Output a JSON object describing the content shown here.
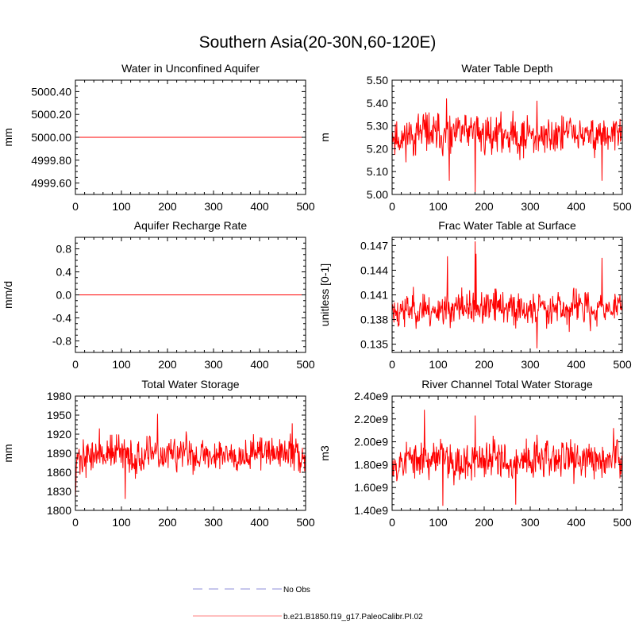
{
  "figure_title": "Southern Asia(20-30N,60-120E)",
  "colors": {
    "series": "#ff0000",
    "obs": "#b3b3e6",
    "axis": "#000000"
  },
  "legend": [
    {
      "label": "No Obs",
      "style": "dashed",
      "color": "#b3b3e6"
    },
    {
      "label": "b.e21.B1850.f19_g17.PaleoCalibr.PI.02",
      "style": "solid",
      "color": "#ff9999"
    }
  ],
  "chart_data": [
    {
      "type": "line",
      "title": "Water in Unconfined Aquifer",
      "ylabel": "mm",
      "xlim": [
        0,
        500
      ],
      "ylim": [
        4999.5,
        5000.5
      ],
      "xticks": [
        0,
        100,
        200,
        300,
        400,
        500
      ],
      "xtick_labels": [
        "0",
        "100",
        "200",
        "300",
        "400",
        "500"
      ],
      "yticks": [
        4999.6,
        4999.8,
        5000.0,
        5000.2,
        5000.4
      ],
      "ytick_labels": [
        "4999.60",
        "4999.80",
        "5000.00",
        "5000.20",
        "5000.40"
      ],
      "series": {
        "name": "b.e21.B1850.f19_g17.PaleoCalibr.PI.02",
        "n": 500,
        "constant": 5000.0
      }
    },
    {
      "type": "line",
      "title": "Water Table Depth",
      "ylabel": "m",
      "xlim": [
        0,
        500
      ],
      "ylim": [
        5.0,
        5.5
      ],
      "xticks": [
        0,
        100,
        200,
        300,
        400,
        500
      ],
      "xtick_labels": [
        "0",
        "100",
        "200",
        "300",
        "400",
        "500"
      ],
      "yticks": [
        5.0,
        5.1,
        5.2,
        5.3,
        5.4,
        5.5
      ],
      "ytick_labels": [
        "5.00",
        "5.10",
        "5.20",
        "5.30",
        "5.40",
        "5.50"
      ],
      "series": {
        "name": "b.e21.B1850.f19_g17.PaleoCalibr.PI.02",
        "n": 500,
        "mean": 5.26,
        "amp": 0.05,
        "min": 5.01,
        "max": 5.42,
        "seed": 11,
        "spikes": [
          [
            118,
            5.42
          ],
          [
            124,
            5.06
          ],
          [
            180,
            5.01
          ],
          [
            314,
            5.41
          ],
          [
            455,
            5.06
          ]
        ]
      }
    },
    {
      "type": "line",
      "title": "Aquifer Recharge Rate",
      "ylabel": "mm/d",
      "xlim": [
        0,
        500
      ],
      "ylim": [
        -1.0,
        1.0
      ],
      "xticks": [
        0,
        100,
        200,
        300,
        400,
        500
      ],
      "xtick_labels": [
        "0",
        "100",
        "200",
        "300",
        "400",
        "500"
      ],
      "yticks": [
        -0.8,
        -0.4,
        0.0,
        0.4,
        0.8
      ],
      "ytick_labels": [
        "-0.8",
        "-0.4",
        "0.0",
        "0.4",
        "0.8"
      ],
      "series": {
        "name": "b.e21.B1850.f19_g17.PaleoCalibr.PI.02",
        "n": 500,
        "constant": 0.0
      }
    },
    {
      "type": "line",
      "title": "Frac Water Table at Surface",
      "ylabel": "unitless [0-1]",
      "xlim": [
        0,
        500
      ],
      "ylim": [
        0.134,
        0.148
      ],
      "xticks": [
        0,
        100,
        200,
        300,
        400,
        500
      ],
      "xtick_labels": [
        "0",
        "100",
        "200",
        "300",
        "400",
        "500"
      ],
      "yticks": [
        0.135,
        0.138,
        0.141,
        0.144,
        0.147
      ],
      "ytick_labels": [
        "0.135",
        "0.138",
        "0.141",
        "0.144",
        "0.147"
      ],
      "series": {
        "name": "b.e21.B1850.f19_g17.PaleoCalibr.PI.02",
        "n": 500,
        "mean": 0.1393,
        "amp": 0.0012,
        "min": 0.1345,
        "max": 0.1475,
        "seed": 23,
        "spikes": [
          [
            120,
            0.1457
          ],
          [
            180,
            0.1475
          ],
          [
            182,
            0.146
          ],
          [
            314,
            0.1345
          ],
          [
            455,
            0.1455
          ]
        ]
      }
    },
    {
      "type": "line",
      "title": "Total Water Storage",
      "ylabel": "mm",
      "xlim": [
        0,
        500
      ],
      "ylim": [
        1800,
        1980
      ],
      "xticks": [
        0,
        100,
        200,
        300,
        400,
        500
      ],
      "xtick_labels": [
        "0",
        "100",
        "200",
        "300",
        "400",
        "500"
      ],
      "yticks": [
        1800,
        1830,
        1860,
        1890,
        1920,
        1950,
        1980
      ],
      "ytick_labels": [
        "1800",
        "1830",
        "1860",
        "1890",
        "1920",
        "1950",
        "1980"
      ],
      "series": {
        "name": "b.e21.B1850.f19_g17.PaleoCalibr.PI.02",
        "n": 500,
        "mean": 1888,
        "amp": 16,
        "min": 1818,
        "max": 1952,
        "seed": 37,
        "start": [
          1820,
          1838,
          1870
        ],
        "spikes": [
          [
            108,
            1818
          ],
          [
            178,
            1952
          ],
          [
            470,
            1937
          ]
        ]
      }
    },
    {
      "type": "line",
      "title": "River Channel Total Water Storage",
      "ylabel": "m3",
      "xlim": [
        0,
        500
      ],
      "ylim": [
        1400000000.0,
        2400000000.0
      ],
      "xticks": [
        0,
        100,
        200,
        300,
        400,
        500
      ],
      "xtick_labels": [
        "0",
        "100",
        "200",
        "300",
        "400",
        "500"
      ],
      "yticks": [
        1400000000.0,
        1600000000.0,
        1800000000.0,
        2000000000.0,
        2200000000.0,
        2400000000.0
      ],
      "ytick_labels": [
        "1.40e9",
        "1.60e9",
        "1.80e9",
        "2.00e9",
        "2.20e9",
        "2.40e9"
      ],
      "series": {
        "name": "b.e21.B1850.f19_g17.PaleoCalibr.PI.02",
        "n": 500,
        "mean": 1840000000.0,
        "amp": 100000000.0,
        "min": 1440000000.0,
        "max": 2280000000.0,
        "seed": 53,
        "spikes": [
          [
            70,
            2280000000.0
          ],
          [
            110,
            1440000000.0
          ],
          [
            180,
            2230000000.0
          ],
          [
            268,
            1450000000.0
          ],
          [
            480,
            2120000000.0
          ]
        ]
      }
    }
  ]
}
